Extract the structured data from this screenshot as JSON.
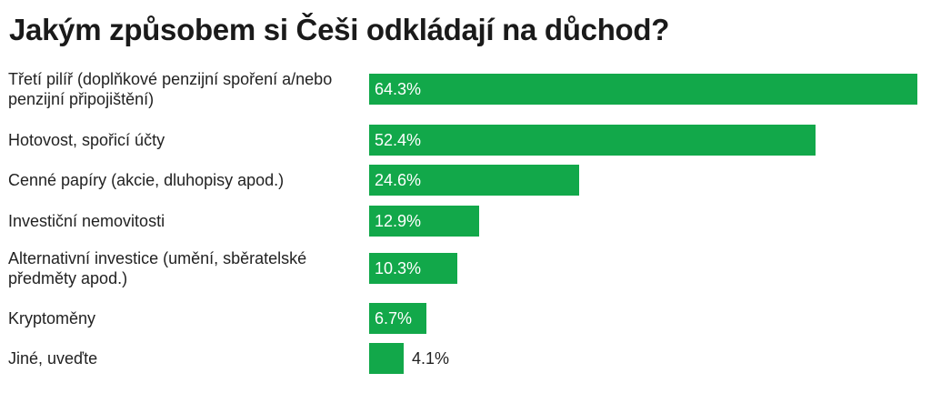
{
  "chart_data": {
    "type": "bar",
    "orientation": "horizontal",
    "title": "Jakým způsobem si Češi odkládají na důchod?",
    "categories": [
      [
        "Třetí pilíř (doplňkové penzijní spoření a/nebo",
        "penzijní připojištění)"
      ],
      [
        "Hotovost, spořicí účty"
      ],
      [
        "Cenné papíry (akcie, dluhopisy apod.)"
      ],
      [
        "Investiční nemovitosti"
      ],
      [
        "Alternativní investice (umění, sběratelské",
        "předměty apod.)"
      ],
      [
        "Kryptoměny"
      ],
      [
        "Jiné, uveďte"
      ]
    ],
    "values": [
      64.3,
      52.4,
      24.6,
      12.9,
      10.3,
      6.7,
      4.1
    ],
    "value_labels": [
      "64.3%",
      "52.4%",
      "24.6%",
      "12.9%",
      "10.3%",
      "6.7%",
      "4.1%"
    ],
    "unit": "%",
    "xlim": [
      0,
      64.3
    ],
    "grid": false,
    "legend": "none",
    "colors": {
      "bar": "#12a84a",
      "label_inside": "#ffffff",
      "label_outside": "#222222",
      "text": "#222222"
    }
  }
}
